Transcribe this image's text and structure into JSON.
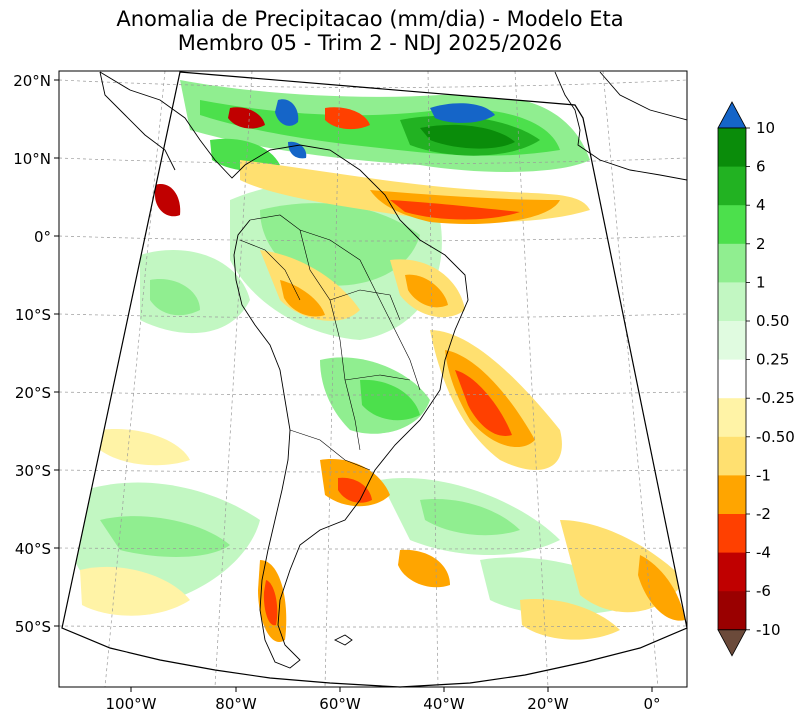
{
  "title": {
    "line1": "Anomalia de Precipitacao (mm/dia) - Modelo Eta",
    "line2": "Membro 05 - Trim 2 - NDJ 2025/2026"
  },
  "axes": {
    "lat_labels": [
      "20°N",
      "10°N",
      "0°",
      "10°S",
      "20°S",
      "30°S",
      "40°S",
      "50°S"
    ],
    "lon_labels": [
      "100°W",
      "80°W",
      "60°W",
      "40°W",
      "20°W",
      "0°"
    ]
  },
  "colorbar": {
    "tick_labels": [
      "10",
      "6",
      "4",
      "2",
      "1",
      "0.50",
      "0.25",
      "-0.25",
      "-0.50",
      "-1",
      "-2",
      "-4",
      "-6",
      "-10"
    ],
    "colors": [
      "#1565c8",
      "#0a8c0a",
      "#22b222",
      "#4ce04c",
      "#90ee90",
      "#c2f7c2",
      "#e0fbe0",
      "#ffffff",
      "#fff3a6",
      "#ffe070",
      "#ffa500",
      "#ff4000",
      "#c00000",
      "#9a0000",
      "#6b4a3a"
    ]
  }
}
